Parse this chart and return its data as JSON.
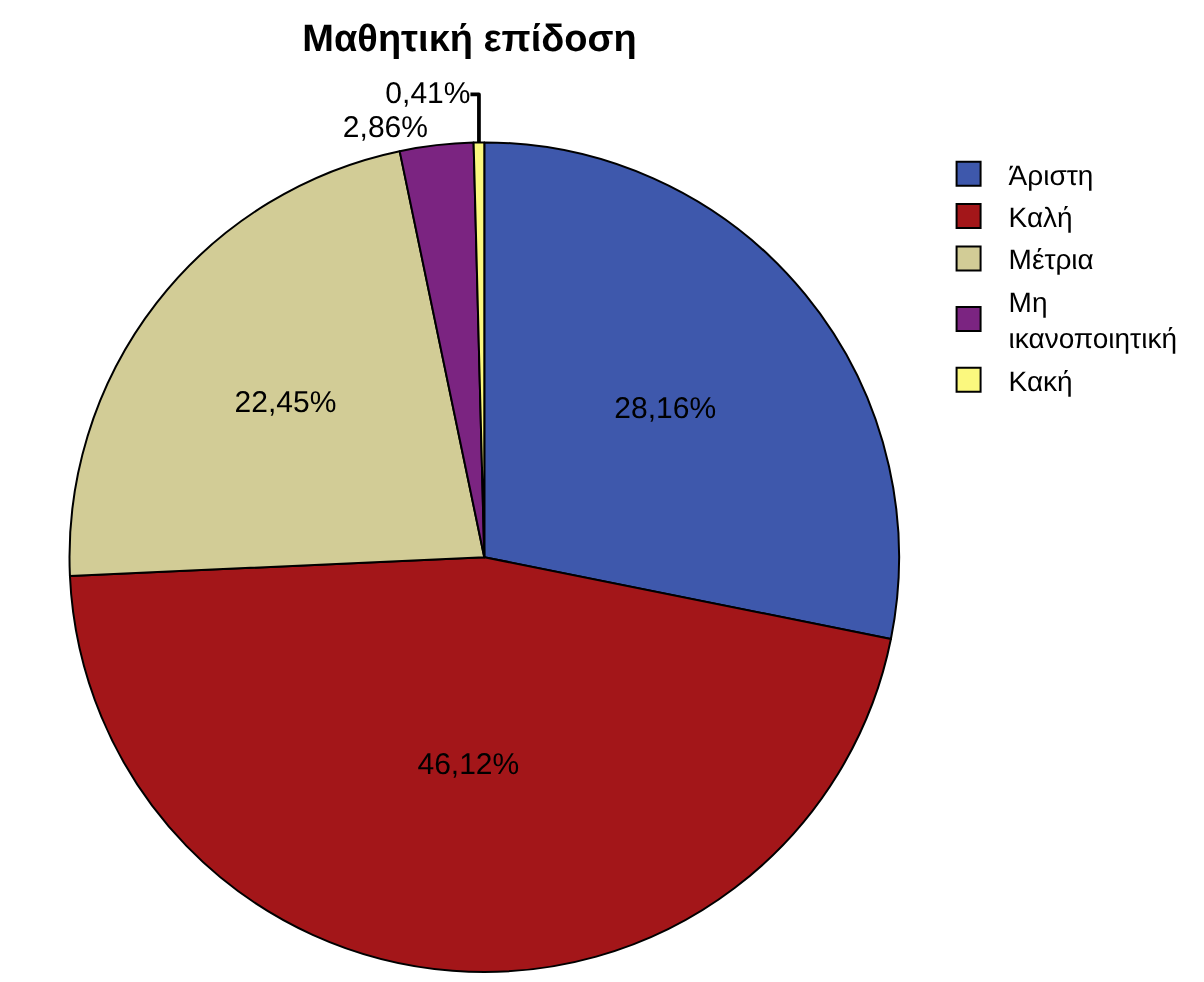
{
  "chart_data": {
    "type": "pie",
    "title": "Μαθητική επίδοση",
    "categories": [
      "Άριστη",
      "Καλή",
      "Μέτρια",
      "Μη ικανοποιητική",
      "Κακή"
    ],
    "values": [
      28.16,
      46.12,
      22.45,
      2.86,
      0.41
    ],
    "colors": [
      "#3e58ac",
      "#a31619",
      "#d2cc96",
      "#7b2481",
      "#fbf87e"
    ],
    "value_labels": [
      "28,16%",
      "46,12%",
      "22,45%",
      "2,86%",
      "0,41%"
    ],
    "legend": "top right"
  }
}
